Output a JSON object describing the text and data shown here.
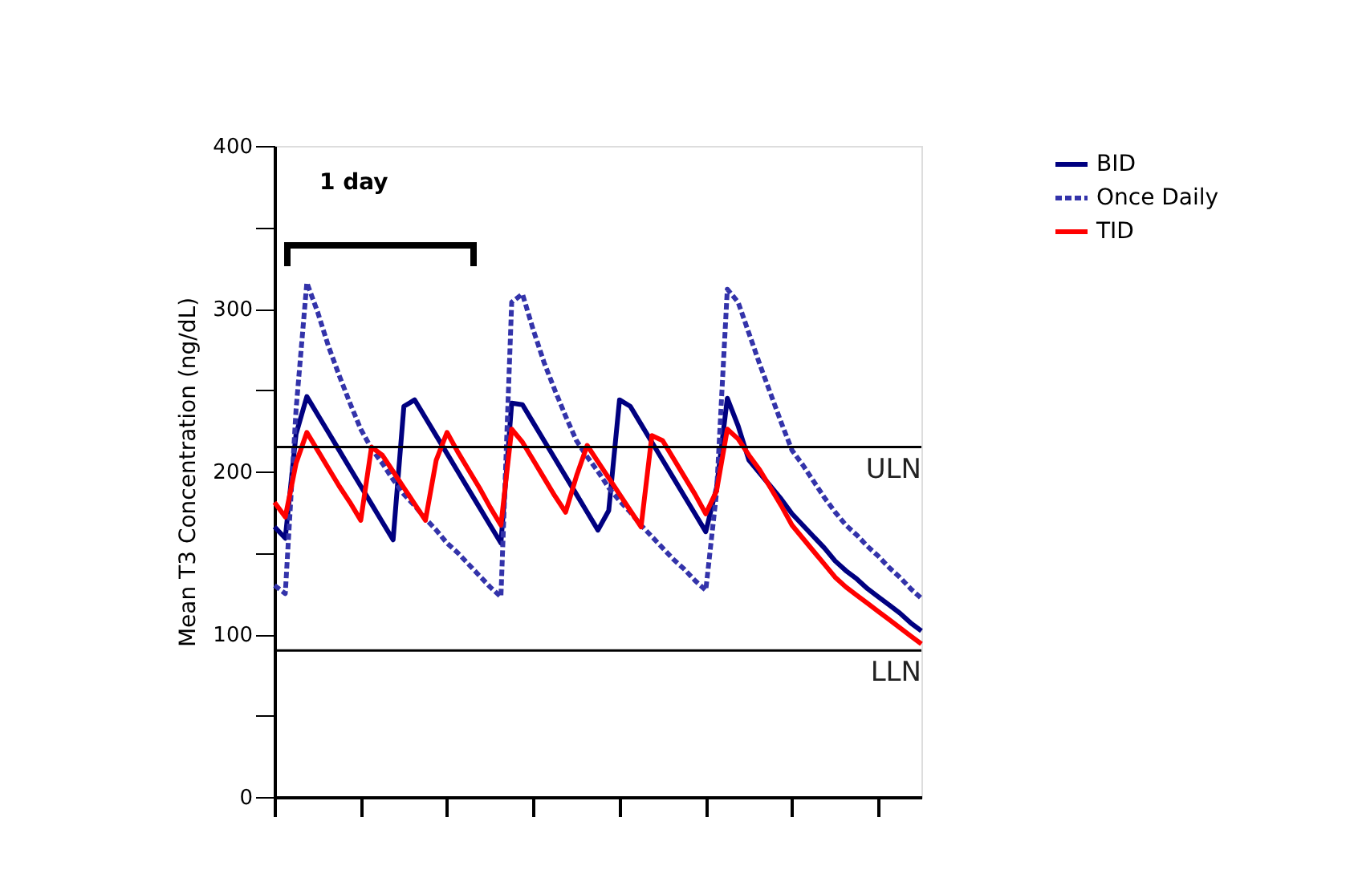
{
  "chart_data": {
    "type": "line",
    "ylabel": "Mean T3 Concentration (ng/dL)",
    "categories": [
      null,
      null,
      null,
      null,
      null,
      null,
      null,
      null,
      null,
      null,
      null,
      null,
      null,
      null,
      null,
      null,
      null,
      null,
      null,
      null,
      null,
      null,
      null,
      null,
      null,
      null,
      null,
      null,
      null,
      null,
      null,
      null,
      null,
      null,
      null,
      null,
      null,
      null,
      null,
      null,
      null,
      null,
      null,
      null,
      null,
      null,
      null,
      null,
      null,
      null,
      null,
      null,
      null,
      null,
      null,
      null,
      null,
      null,
      null,
      null,
      null
    ],
    "ylim": [
      0,
      400
    ],
    "yticks": [
      0,
      {
        "value": 50,
        "label": null
      },
      100,
      {
        "value": 150,
        "label": null
      },
      200,
      {
        "value": 250,
        "label": null
      },
      300,
      {
        "value": 350,
        "label": null
      },
      400
    ],
    "tick_labels": "y",
    "grid": false,
    "legend": "right",
    "marker": "none",
    "series": [
      {
        "name": "BID",
        "color": "#000080",
        "line_style": "solid",
        "values": [
          166,
          159,
          223,
          246,
          235,
          224,
          213,
          202,
          191,
          180,
          169,
          158,
          240,
          244,
          233,
          222,
          211,
          200,
          189,
          178,
          167,
          156,
          242,
          241,
          230,
          219,
          208,
          197,
          186,
          175,
          164,
          176,
          244,
          240,
          229,
          218,
          207,
          196,
          185,
          174,
          163,
          190,
          245,
          228,
          207,
          199,
          191,
          183,
          174,
          167,
          160,
          153,
          145,
          139,
          134,
          128,
          123,
          118,
          113,
          107,
          102
        ]
      },
      {
        "name": "Once Daily",
        "color": "#3333aa",
        "line_style": "dashed",
        "values": [
          130,
          125,
          238,
          316,
          298,
          277,
          259,
          242,
          226,
          214,
          205,
          195,
          186,
          179,
          171,
          164,
          156,
          150,
          143,
          136,
          129,
          123,
          304,
          309,
          287,
          267,
          250,
          234,
          219,
          209,
          200,
          190,
          182,
          175,
          167,
          160,
          153,
          146,
          140,
          133,
          127,
          187,
          312,
          304,
          285,
          266,
          248,
          230,
          213,
          204,
          194,
          184,
          175,
          167,
          161,
          154,
          148,
          141,
          135,
          128,
          122
        ]
      },
      {
        "name": "TID",
        "color": "#ff0000",
        "line_style": "solid",
        "values": [
          181,
          172,
          205,
          224,
          213,
          202,
          191,
          181,
          170,
          215,
          210,
          200,
          190,
          180,
          170,
          207,
          224,
          212,
          201,
          190,
          178,
          167,
          226,
          218,
          207,
          196,
          185,
          175,
          197,
          216,
          206,
          196,
          186,
          176,
          166,
          222,
          219,
          208,
          197,
          186,
          174,
          188,
          226,
          220,
          210,
          201,
          190,
          179,
          167,
          159,
          151,
          143,
          135,
          129,
          124,
          119,
          114,
          109,
          104,
          99,
          94
        ]
      }
    ],
    "ref_lines": [
      {
        "axis": "y",
        "value": 215,
        "label": "ULN",
        "color": "#000000"
      },
      {
        "axis": "y",
        "value": 90,
        "label": "LLN",
        "color": "#000000"
      }
    ],
    "annotations": [
      "1 day"
    ]
  }
}
